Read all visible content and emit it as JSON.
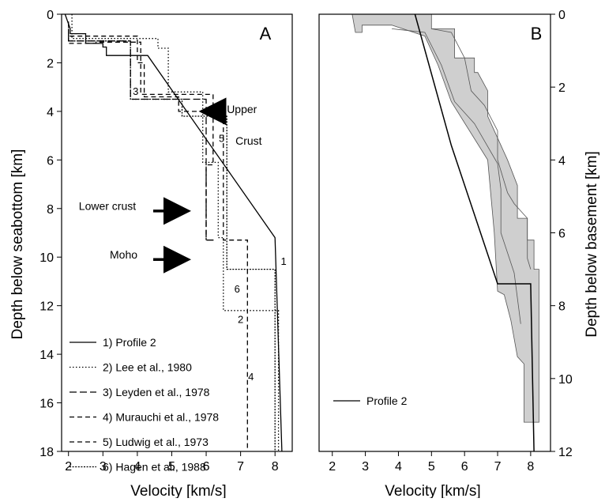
{
  "chart_data": [
    {
      "panel_label": "A",
      "type": "line",
      "xlabel": "Velocity [km/s]",
      "ylabel": "Depth below seabottom [km]",
      "xlim": [
        1.8,
        8.5
      ],
      "ylim": [
        18,
        0
      ],
      "xticks": [
        2,
        3,
        4,
        5,
        6,
        7,
        8
      ],
      "yticks": [
        0,
        2,
        4,
        6,
        8,
        10,
        12,
        14,
        16,
        18
      ],
      "legend": "bottom-left",
      "series": [
        {
          "name": "1) Profile 2",
          "style": "solid",
          "label": "1",
          "x": [
            1.9,
            2.05,
            2.05,
            2.5,
            2.5,
            3.0,
            3.0,
            3.1,
            3.1,
            4.3,
            8.0,
            8.0,
            8.2
          ],
          "y": [
            0,
            0.6,
            0.8,
            0.8,
            1.2,
            1.2,
            1.35,
            1.35,
            1.7,
            1.7,
            9.2,
            9.2,
            18
          ]
        },
        {
          "name": "2) Lee et al., 1980",
          "style": "dotted",
          "label": "2",
          "x": [
            2.1,
            2.1,
            4.6,
            4.6,
            4.9,
            4.9,
            5.9,
            5.9,
            6.35,
            6.35,
            6.5,
            6.5,
            8.1,
            8.1
          ],
          "y": [
            0,
            1.0,
            1.0,
            1.4,
            1.4,
            3.2,
            3.2,
            6.1,
            6.1,
            9.2,
            9.2,
            12.2,
            12.2,
            18
          ]
        },
        {
          "name": "3) Leyden et al., 1978",
          "style": "longdash",
          "label": "3",
          "x": [
            2.0,
            2.0,
            3.8,
            3.8,
            6.0,
            6.0,
            6.3
          ],
          "y": [
            0.6,
            1.1,
            1.1,
            3.5,
            3.5,
            9.3,
            9.3
          ]
        },
        {
          "name": "4) Murauchi et al., 1978",
          "style": "dashed",
          "label": "4",
          "x": [
            2.0,
            2.0,
            4.0,
            4.0,
            4.2,
            4.2,
            5.2,
            5.2,
            6.5,
            6.5,
            7.2,
            7.2
          ],
          "y": [
            0.3,
            0.9,
            0.9,
            2.0,
            2.0,
            3.4,
            3.4,
            4.0,
            4.0,
            9.3,
            9.3,
            18
          ]
        },
        {
          "name": "5) Ludwig et al., 1973",
          "style": "dashed",
          "label": "5",
          "x": [
            2.0,
            2.0,
            2.8,
            2.8,
            4.1,
            4.1,
            6.2,
            6.2,
            6.0,
            6.0
          ],
          "y": [
            0.9,
            1.2,
            1.2,
            1.15,
            1.15,
            3.3,
            3.3,
            6.2,
            6.2,
            9.3
          ]
        },
        {
          "name": "6) Hagen et al., 1988",
          "style": "densedot",
          "label": "6",
          "x": [
            2.0,
            2.0,
            3.8,
            3.8,
            5.3,
            5.3,
            6.6,
            6.6,
            8.0,
            8.0
          ],
          "y": [
            0.5,
            1.1,
            1.1,
            3.5,
            3.5,
            4.2,
            4.2,
            10.5,
            10.5,
            18
          ]
        }
      ],
      "annotations": [
        {
          "text": "Upper",
          "x": 6.6,
          "y": 3.9,
          "arrow": true,
          "arrow_to": [
            6.15,
            4.0
          ]
        },
        {
          "text": "Crust",
          "x": 6.85,
          "y": 5.2
        },
        {
          "text": "Lower crust",
          "x": 2.3,
          "y": 7.9,
          "arrow": true,
          "arrow_to": [
            5.15,
            8.1
          ]
        },
        {
          "text": "Moho",
          "x": 3.2,
          "y": 9.9,
          "arrow": true,
          "arrow_to": [
            5.15,
            10.1
          ]
        }
      ]
    },
    {
      "panel_label": "B",
      "type": "area",
      "xlabel": "Velocity [km/s]",
      "ylabel": "Depth below basement [km]",
      "xlim": [
        1.6,
        8.6
      ],
      "ylim": [
        12,
        0
      ],
      "xticks": [
        2,
        3,
        4,
        5,
        6,
        7,
        8
      ],
      "yticks": [
        0,
        2,
        4,
        6,
        8,
        10,
        12
      ],
      "legend": "bottom-left",
      "series": [
        {
          "name": "Profile 2",
          "style": "solid",
          "x": [
            4.5,
            5.6,
            7.0,
            7.0,
            8.0,
            8.1
          ],
          "y": [
            0,
            3.6,
            7.4,
            7.4,
            7.4,
            12
          ]
        }
      ],
      "envelope": {
        "fill": "#cfcfcf",
        "left": {
          "x": [
            2.6,
            2.7,
            2.9,
            2.9,
            3.8,
            4.8,
            5.2,
            5.6,
            6.7,
            6.9,
            7.0,
            7.2,
            7.4,
            7.6,
            7.8,
            7.8
          ],
          "y": [
            0,
            0.5,
            0.5,
            0.3,
            0.3,
            0.6,
            1.4,
            2.4,
            4.0,
            6.0,
            7.6,
            7.7,
            8.4,
            9.4,
            9.6,
            11.2
          ]
        },
        "right": {
          "x": [
            3.9,
            5.0,
            5.0,
            5.7,
            5.7,
            6.3,
            6.3,
            6.4,
            6.7,
            6.7,
            7.3,
            7.6,
            7.6,
            7.9,
            7.9,
            8.1,
            8.1,
            8.25,
            8.25,
            8.25
          ],
          "y": [
            0,
            0,
            0.4,
            0.4,
            1.2,
            1.2,
            1.6,
            1.6,
            2.1,
            2.8,
            4.0,
            4.7,
            5.6,
            5.6,
            6.2,
            6.2,
            7.0,
            7.0,
            9.6,
            11.2
          ]
        },
        "inner": [
          {
            "x": [
              3.8,
              4.8,
              5.3,
              5.7,
              6.3,
              7.0,
              7.1,
              7.1,
              7.5,
              7.7
            ],
            "y": [
              0.4,
              0.5,
              1.4,
              2.4,
              3.0,
              4.1,
              4.8,
              6.0,
              7.1,
              8.5
            ]
          },
          {
            "x": [
              5.0,
              5.6,
              6.0,
              6.2,
              6.6,
              7.0,
              7.0,
              7.3,
              7.5,
              7.9,
              7.9,
              8.0
            ],
            "y": [
              0.4,
              0.5,
              1.2,
              2.1,
              2.5,
              3.2,
              4.0,
              4.9,
              5.2,
              5.6,
              6.7,
              7.0
            ]
          }
        ]
      }
    }
  ]
}
